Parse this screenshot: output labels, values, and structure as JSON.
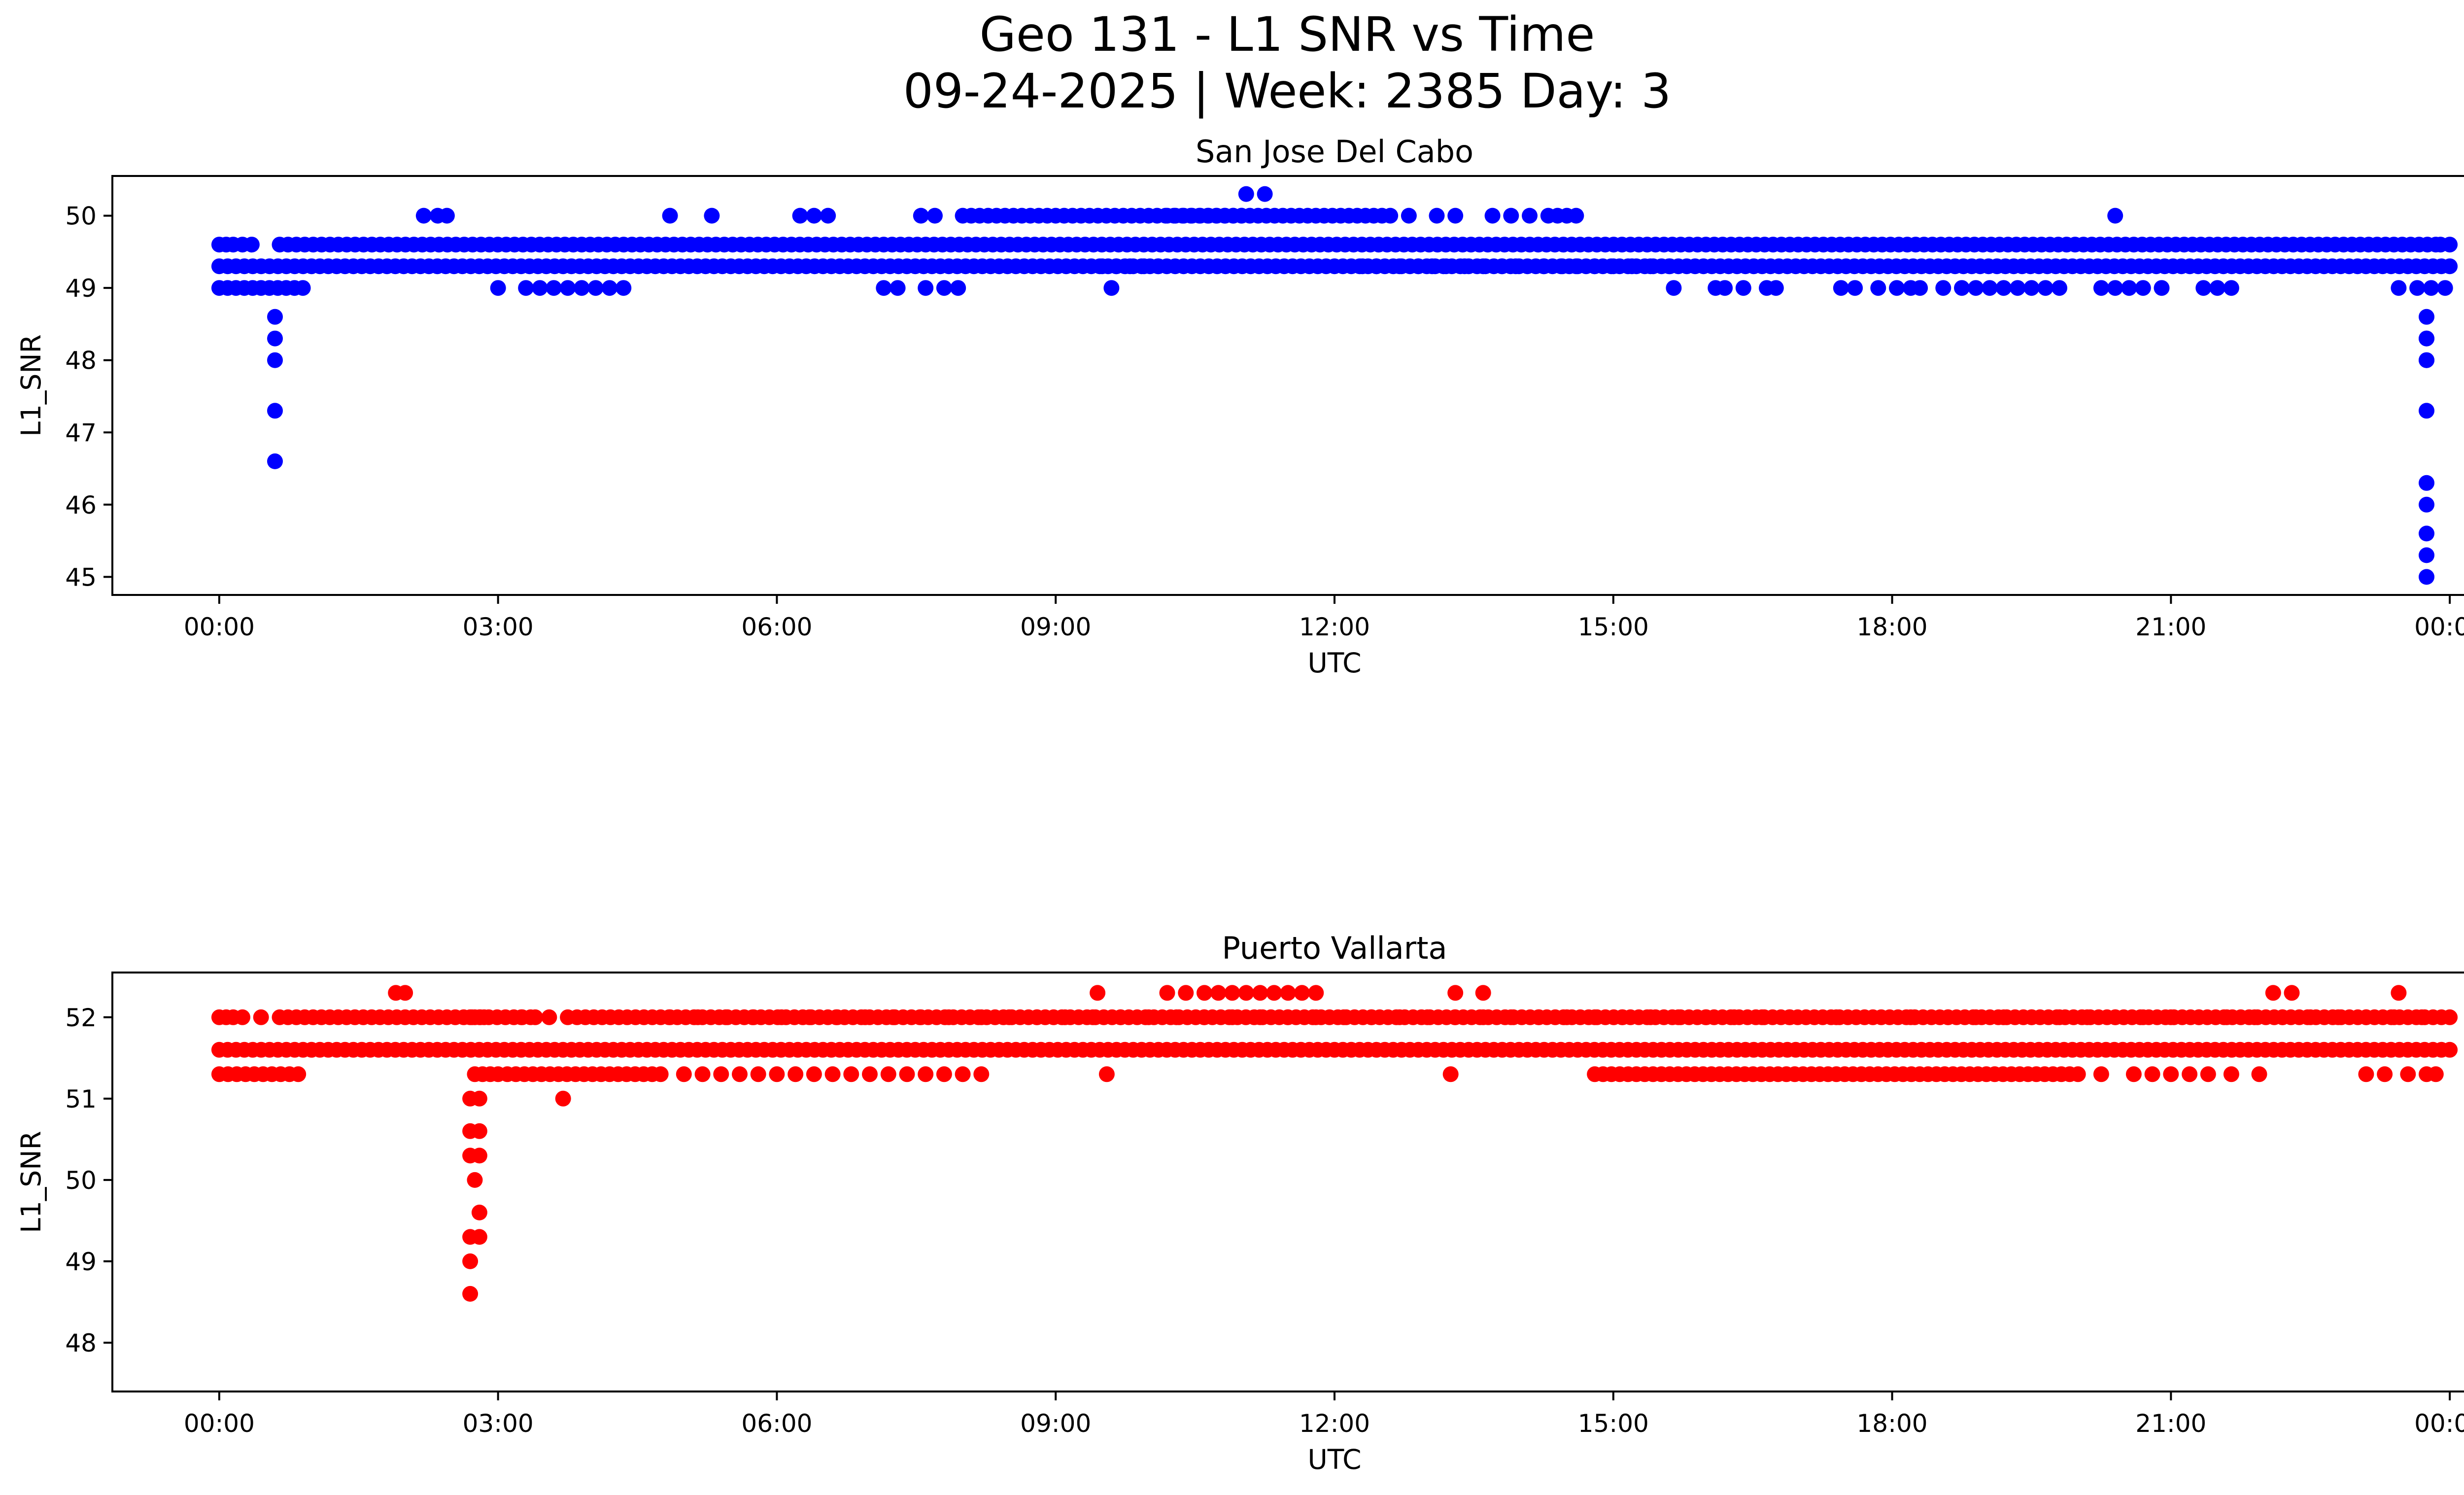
{
  "figure": {
    "title_line1": "Geo 131 - L1 SNR vs Time",
    "title_line2": "09-24-2025 | Week: 2385 Day: 3"
  },
  "chart_data": [
    {
      "type": "scatter",
      "title": "San Jose Del Cabo",
      "xlabel": "UTC",
      "ylabel": "L1_SNR",
      "color": "#0000ff",
      "x_unit": "hours UTC (0 = 00:00 on 09-24-2025, 24 = 00:00 next day)",
      "xlim": [
        -1.15,
        25.15
      ],
      "ylim": [
        44.75,
        50.55
      ],
      "x_ticks": [
        0,
        3,
        6,
        9,
        12,
        15,
        18,
        21,
        24
      ],
      "x_tick_labels": [
        "00:00",
        "03:00",
        "06:00",
        "09:00",
        "12:00",
        "15:00",
        "18:00",
        "21:00",
        "00:00"
      ],
      "y_ticks": [
        45,
        46,
        47,
        48,
        49,
        50
      ],
      "y_tick_labels": [
        "45",
        "46",
        "47",
        "48",
        "49",
        "50"
      ],
      "bands": [
        {
          "y": 49.3,
          "x_ranges": [
            [
              0.0,
              24.0
            ]
          ]
        },
        {
          "y": 49.6,
          "x_ranges": [
            [
              0.0,
              0.15
            ],
            [
              0.25,
              0.35
            ],
            [
              0.65,
              23.85
            ],
            [
              23.9,
              24.0
            ]
          ]
        },
        {
          "y": 49.0,
          "x_ranges": [
            [
              0.0,
              0.9
            ]
          ]
        },
        {
          "y": 50.0,
          "x_ranges": [
            [
              8.0,
              11.0
            ],
            [
              10.2,
              12.6
            ],
            [
              14.3,
              14.6
            ]
          ]
        }
      ],
      "points": {
        "x": [
          2.2,
          2.35,
          2.45,
          4.85,
          5.3,
          6.25,
          6.4,
          6.55,
          7.55,
          7.7,
          12.8,
          13.1,
          13.3,
          13.7,
          13.9,
          14.1,
          20.4,
          11.05,
          11.25,
          3.0,
          3.3,
          3.45,
          3.6,
          3.75,
          3.9,
          4.05,
          4.2,
          4.35,
          7.15,
          7.3,
          7.6,
          7.8,
          7.95,
          9.6,
          15.65,
          16.1,
          16.2,
          16.4,
          16.65,
          16.75,
          17.45,
          17.6,
          17.85,
          18.05,
          18.2,
          18.3,
          18.55,
          18.75,
          18.9,
          19.05,
          19.2,
          19.35,
          19.5,
          19.65,
          19.8,
          20.25,
          20.4,
          20.55,
          20.7,
          20.9,
          21.35,
          21.5,
          21.65,
          23.45,
          23.65,
          23.8,
          23.95,
          12.3,
          12.45,
          12.7,
          12.9,
          13.05,
          13.2,
          13.4,
          13.6,
          13.8,
          13.95,
          14.25,
          14.45,
          14.6,
          14.8,
          15.0,
          15.2,
          15.4,
          15.6,
          9.5,
          9.65,
          9.8,
          9.95,
          10.1,
          0.6,
          0.6,
          0.6,
          0.6,
          0.6,
          23.75,
          23.75,
          23.75,
          23.75,
          23.75,
          23.75,
          23.75,
          23.75,
          23.75,
          23.75,
          23.75
        ],
        "y": [
          50.0,
          50.0,
          50.0,
          50.0,
          50.0,
          50.0,
          50.0,
          50.0,
          50.0,
          50.0,
          50.0,
          50.0,
          50.0,
          50.0,
          50.0,
          50.0,
          50.0,
          50.3,
          50.3,
          49.0,
          49.0,
          49.0,
          49.0,
          49.0,
          49.0,
          49.0,
          49.0,
          49.0,
          49.0,
          49.0,
          49.0,
          49.0,
          49.0,
          49.0,
          49.0,
          49.0,
          49.0,
          49.0,
          49.0,
          49.0,
          49.0,
          49.0,
          49.0,
          49.0,
          49.0,
          49.0,
          49.0,
          49.0,
          49.0,
          49.0,
          49.0,
          49.0,
          49.0,
          49.0,
          49.0,
          49.0,
          49.0,
          49.0,
          49.0,
          49.0,
          49.0,
          49.0,
          49.0,
          49.0,
          49.0,
          49.0,
          49.0,
          49.3,
          49.3,
          49.3,
          49.3,
          49.3,
          49.3,
          49.3,
          49.3,
          49.3,
          49.3,
          49.3,
          49.3,
          49.3,
          49.3,
          49.3,
          49.3,
          49.3,
          49.3,
          49.3,
          49.3,
          49.3,
          49.3,
          49.3,
          48.6,
          48.3,
          48.0,
          47.3,
          46.6,
          48.6,
          48.3,
          48.0,
          47.3,
          46.3,
          46.0,
          45.6,
          45.3,
          45.0,
          48.3,
          48.0
        ]
      }
    },
    {
      "type": "scatter",
      "title": "Puerto Vallarta",
      "xlabel": "UTC",
      "ylabel": "L1_SNR",
      "color": "#ff0000",
      "x_unit": "hours UTC (0 = 00:00 on 09-24-2025, 24 = 00:00 next day)",
      "xlim": [
        -1.15,
        25.15
      ],
      "ylim": [
        47.4,
        52.55
      ],
      "x_ticks": [
        0,
        3,
        6,
        9,
        12,
        15,
        18,
        21,
        24
      ],
      "x_tick_labels": [
        "00:00",
        "03:00",
        "06:00",
        "09:00",
        "12:00",
        "15:00",
        "18:00",
        "21:00",
        "00:00"
      ],
      "y_ticks": [
        48,
        49,
        50,
        51,
        52
      ],
      "y_tick_labels": [
        "48",
        "49",
        "50",
        "51",
        "52"
      ],
      "bands": [
        {
          "y": 51.6,
          "x_ranges": [
            [
              0.0,
              24.0
            ]
          ]
        },
        {
          "y": 52.0,
          "x_ranges": [
            [
              0.0,
              0.15
            ],
            [
              0.65,
              3.35
            ],
            [
              3.85,
              24.0
            ]
          ]
        },
        {
          "y": 51.3,
          "x_ranges": [
            [
              0.0,
              0.85
            ],
            [
              2.75,
              3.0
            ],
            [
              3.1,
              4.75
            ],
            [
              14.8,
              20.0
            ]
          ]
        }
      ],
      "points": {
        "x": [
          0.25,
          0.45,
          2.7,
          2.75,
          2.8,
          2.85,
          3.25,
          3.4,
          3.55,
          3.75,
          5.0,
          5.2,
          5.4,
          5.6,
          5.8,
          6.0,
          6.2,
          6.4,
          6.6,
          6.8,
          7.0,
          7.2,
          7.4,
          7.6,
          7.8,
          8.0,
          8.2,
          9.55,
          13.25,
          20.25,
          20.6,
          20.8,
          21.0,
          21.2,
          21.4,
          21.65,
          21.95,
          23.1,
          23.3,
          23.55,
          23.75,
          23.85,
          1.9,
          2.0,
          9.45,
          10.2,
          10.4,
          10.6,
          10.75,
          10.9,
          11.05,
          11.2,
          11.35,
          11.5,
          11.65,
          11.8,
          13.3,
          13.6,
          22.1,
          22.3,
          23.45,
          4.85,
          5.15,
          5.45,
          5.75,
          6.05,
          6.35,
          6.65,
          6.95,
          7.25,
          7.55,
          7.85,
          8.2,
          8.5,
          8.8,
          9.1,
          9.4,
          9.7,
          10.0,
          10.3,
          10.6,
          10.9,
          11.2,
          11.5,
          11.8,
          12.1,
          12.4,
          12.7,
          13.0,
          13.3,
          13.6,
          13.9,
          14.2,
          14.5,
          14.8,
          15.1,
          15.4,
          15.7,
          16.0,
          16.3,
          16.6,
          16.9,
          17.4,
          18.2,
          18.6,
          18.9,
          19.2,
          19.5,
          19.8,
          20.1,
          20.4,
          20.7,
          21.0,
          21.3,
          21.6,
          21.9,
          22.2,
          22.5,
          22.8,
          23.1,
          23.4,
          23.7,
          2.7,
          2.8,
          2.7,
          2.8,
          2.7,
          2.8,
          2.75,
          2.8,
          2.7,
          2.8,
          2.7,
          2.7,
          3.7
        ],
        "y": [
          52.0,
          52.0,
          52.0,
          52.0,
          52.0,
          52.0,
          52.0,
          52.0,
          52.0,
          52.0,
          51.3,
          51.3,
          51.3,
          51.3,
          51.3,
          51.3,
          51.3,
          51.3,
          51.3,
          51.3,
          51.3,
          51.3,
          51.3,
          51.3,
          51.3,
          51.3,
          51.3,
          51.3,
          51.3,
          51.3,
          51.3,
          51.3,
          51.3,
          51.3,
          51.3,
          51.3,
          51.3,
          51.3,
          51.3,
          51.3,
          51.3,
          51.3,
          52.3,
          52.3,
          52.3,
          52.3,
          52.3,
          52.3,
          52.3,
          52.3,
          52.3,
          52.3,
          52.3,
          52.3,
          52.3,
          52.3,
          52.3,
          52.3,
          52.3,
          52.3,
          52.3,
          52.0,
          52.0,
          52.0,
          52.0,
          52.0,
          52.0,
          52.0,
          52.0,
          52.0,
          52.0,
          52.0,
          52.0,
          52.0,
          52.0,
          52.0,
          52.0,
          52.0,
          52.0,
          52.0,
          52.0,
          52.0,
          52.0,
          52.0,
          52.0,
          52.0,
          52.0,
          52.0,
          52.0,
          52.0,
          52.0,
          52.0,
          52.0,
          52.0,
          52.0,
          52.0,
          52.0,
          52.0,
          52.0,
          52.0,
          52.0,
          52.0,
          52.0,
          52.0,
          52.0,
          52.0,
          52.0,
          52.0,
          52.0,
          52.0,
          52.0,
          52.0,
          52.0,
          52.0,
          52.0,
          52.0,
          52.0,
          52.0,
          52.0,
          52.0,
          52.0,
          52.0,
          51.0,
          51.0,
          50.6,
          50.6,
          50.3,
          50.3,
          50.0,
          49.6,
          49.3,
          49.3,
          49.0,
          48.6,
          51.0
        ]
      }
    }
  ]
}
